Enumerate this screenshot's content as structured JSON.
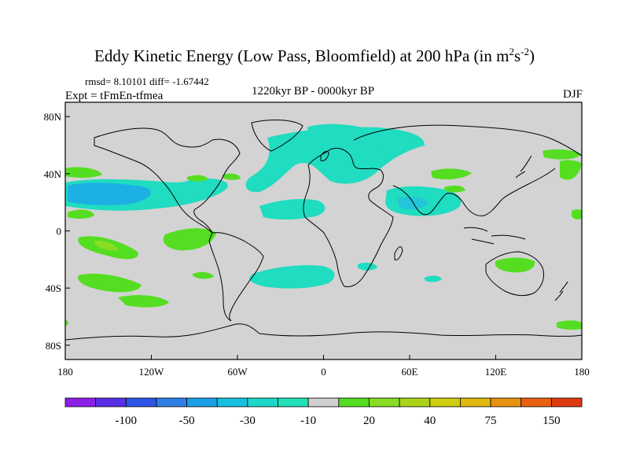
{
  "figure": {
    "title_main": "Eddy Kinetic Energy (Low Pass, Bloomfield) at 200 hPa (in m",
    "title_sup1": "2",
    "title_mid": "s",
    "title_sup2": "-2",
    "title_end": ")",
    "stats": "rmsd= 8.10101 diff= -1.67442",
    "experiment": "Expt = tFmEn-tfmea",
    "period": "1220kyr BP - 0000kyr BP",
    "season": "DJF"
  },
  "chart_data": {
    "type": "heatmap",
    "projection": "cylindrical equidistant",
    "x_ticks": [
      "180",
      "120W",
      "60W",
      "0",
      "60E",
      "120E",
      "180"
    ],
    "x_tick_lon": [
      -180,
      -120,
      -60,
      0,
      60,
      120,
      180
    ],
    "y_ticks": [
      "80N",
      "40N",
      "0",
      "40S",
      "80S"
    ],
    "y_tick_lat": [
      80,
      40,
      0,
      -40,
      -80
    ],
    "lon_range": [
      -180,
      180
    ],
    "lat_range": [
      -90,
      90
    ],
    "colorbar": {
      "labels": [
        "-100",
        "-50",
        "-30",
        "-10",
        "20",
        "40",
        "75",
        "150"
      ],
      "colors": [
        "#8c1fe6",
        "#5a2ee6",
        "#2e55e6",
        "#2e7fe6",
        "#1aa0e6",
        "#16c0e0",
        "#1cd8c8",
        "#22e0b8",
        "#d0d0d0",
        "#55dd22",
        "#88dd22",
        "#aad41a",
        "#d0cc10",
        "#e0b810",
        "#e89010",
        "#e86010",
        "#e03a10"
      ]
    },
    "regions": [
      {
        "name": "north-pacific-negative",
        "sign": "negative",
        "lon": [
          -180,
          -100
        ],
        "lat": [
          20,
          40
        ]
      },
      {
        "name": "north-atlantic-negative",
        "sign": "negative",
        "lon": [
          -50,
          60
        ],
        "lat": [
          30,
          75
        ]
      },
      {
        "name": "north-africa-negative",
        "sign": "negative",
        "lon": [
          -40,
          10
        ],
        "lat": [
          10,
          25
        ]
      },
      {
        "name": "south-asia-negative",
        "sign": "negative",
        "lon": [
          45,
          90
        ],
        "lat": [
          10,
          25
        ]
      },
      {
        "name": "south-atlantic-negative",
        "sign": "negative",
        "lon": [
          -35,
          25
        ],
        "lat": [
          -35,
          -20
        ]
      },
      {
        "name": "east-pacific-positive",
        "sign": "positive",
        "lon": [
          -120,
          -80
        ],
        "lat": [
          -10,
          5
        ]
      },
      {
        "name": "south-pacific-positive",
        "sign": "positive",
        "lon": [
          -150,
          -80
        ],
        "lat": [
          -40,
          -25
        ]
      },
      {
        "name": "australia-positive",
        "sign": "positive",
        "lon": [
          120,
          150
        ],
        "lat": [
          -25,
          -15
        ]
      },
      {
        "name": "central-pacific-positive",
        "sign": "positive",
        "lon": [
          -170,
          -145
        ],
        "lat": [
          -10,
          5
        ]
      }
    ]
  }
}
